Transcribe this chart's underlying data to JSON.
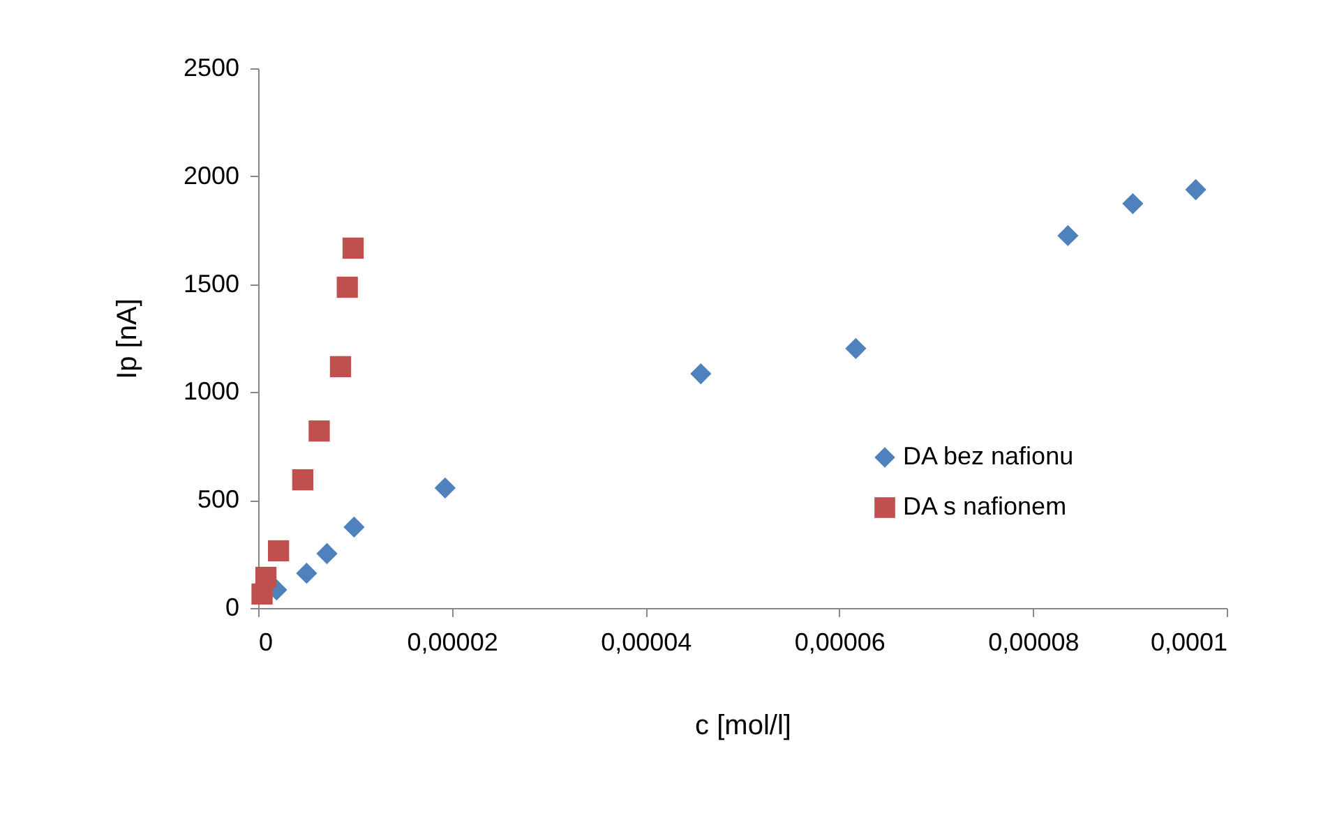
{
  "chart_data": {
    "type": "scatter",
    "xlabel": "c [mol/l]",
    "ylabel": "Ip [nA]",
    "xlim": [
      0,
      0.0001
    ],
    "xticks": [
      {
        "value": 0,
        "label": "0"
      },
      {
        "value": 2e-05,
        "label": "0,00002"
      },
      {
        "value": 4e-05,
        "label": "0,00004"
      },
      {
        "value": 6e-05,
        "label": "0,00006"
      },
      {
        "value": 8e-05,
        "label": "0,00008"
      },
      {
        "value": 0.0001,
        "label": "0,0001"
      }
    ],
    "ylim": [
      0,
      2500
    ],
    "yticks": [
      0,
      500,
      1000,
      1500,
      2000,
      2500
    ],
    "grid": false,
    "legend": "right",
    "series": [
      {
        "name": "DA bez nafionu",
        "color": "#4f81bd",
        "marker": "diamond",
        "x": [
          1.9e-06,
          5e-06,
          7.1e-06,
          9.9e-06,
          1.93e-05,
          4.57e-05,
          6.17e-05,
          8.36e-05,
          9.03e-05,
          9.68e-05
        ],
        "values": [
          84,
          161,
          252,
          375,
          556,
          1085,
          1202,
          1725,
          1873,
          1938
        ]
      },
      {
        "name": "DA s nafionem",
        "color": "#c0504d",
        "marker": "square",
        "x": [
          4e-07,
          8e-07,
          2.1e-06,
          4.6e-06,
          6.3e-06,
          8.5e-06,
          9.2e-06,
          9.8e-06
        ],
        "values": [
          65,
          142,
          265,
          594,
          820,
          1118,
          1486,
          1667
        ]
      }
    ]
  }
}
